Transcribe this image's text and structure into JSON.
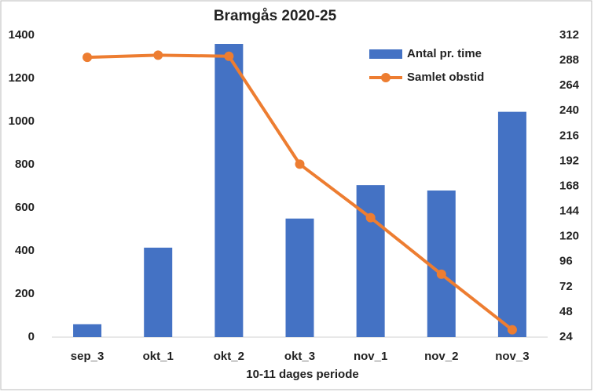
{
  "chart_data": {
    "type": "bar-line",
    "title": "Bramgås 2020-25",
    "x_label": "10-11 dages periode",
    "categories": [
      "sep_3",
      "okt_1",
      "okt_2",
      "okt_3",
      "nov_1",
      "nov_2",
      "nov_3"
    ],
    "series": [
      {
        "name": "Antal pr. time",
        "type": "bar",
        "color": "#4472c4",
        "values": [
          60,
          415,
          1360,
          550,
          705,
          680,
          1045
        ]
      },
      {
        "name": "Samlet obstid",
        "type": "line",
        "axis": "y2",
        "color": "#ed7d31",
        "values": [
          291,
          293,
          292,
          189,
          138,
          84,
          31
        ]
      }
    ],
    "ylim": [
      0,
      1400
    ],
    "yticks": [
      0,
      200,
      400,
      600,
      800,
      1000,
      1200,
      1400
    ],
    "y2lim": [
      24,
      312
    ],
    "y2ticks": [
      24,
      48,
      72,
      96,
      120,
      144,
      168,
      192,
      216,
      240,
      264,
      288,
      312
    ],
    "grid": false,
    "legend": "upper right"
  }
}
